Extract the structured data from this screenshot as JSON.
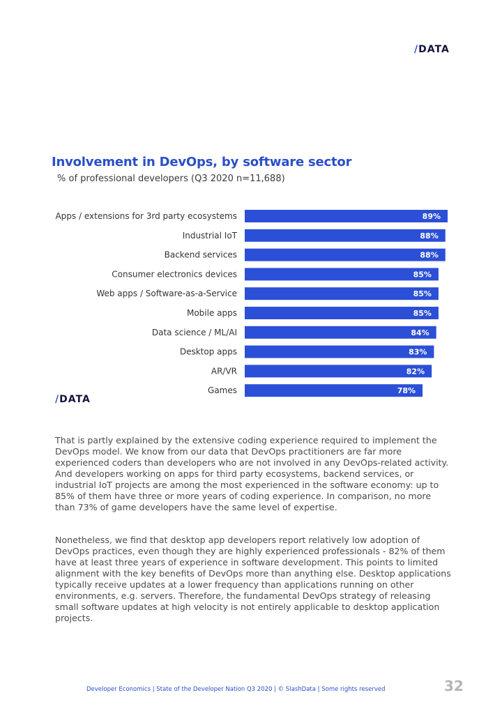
{
  "brand": {
    "logo_text": "/DATA",
    "accent_color": "#2b4fd6"
  },
  "chart_data": {
    "type": "bar",
    "orientation": "horizontal",
    "title": "Involvement in DevOps, by software sector",
    "subtitle": "% of professional developers (Q3 2020 n=11,688)",
    "categories": [
      "Apps / extensions for 3rd party ecosystems",
      "Industrial IoT",
      "Backend services",
      "Consumer electronics devices",
      "Web apps / Software-as-a-Service",
      "Mobile apps",
      "Data science / ML/AI",
      "Desktop apps",
      "AR/VR",
      "Games"
    ],
    "values": [
      89,
      88,
      88,
      85,
      85,
      85,
      84,
      83,
      82,
      78
    ],
    "value_labels": [
      "89%",
      "88%",
      "88%",
      "85%",
      "85%",
      "85%",
      "84%",
      "83%",
      "82%",
      "78%"
    ],
    "unit": "%",
    "xlim": [
      0,
      100
    ],
    "bar_color": "#2b4fd6",
    "grid": false,
    "xlabel": "",
    "ylabel": ""
  },
  "body": {
    "paragraph_1": "That is partly explained by the extensive coding experience required to implement the DevOps model. We know from our data that DevOps practitioners are far more experienced coders than developers who are not involved in any DevOps-related activity. And developers working on apps for third party ecosystems, backend services, or industrial IoT projects are among the most experienced in the software economy: up to 85% of them have three or more years of coding experience. In comparison, no more than 73% of game developers have the same level of expertise.",
    "paragraph_2": "Nonetheless, we find that desktop app developers report relatively low adoption of DevOps practices, even though they are highly experienced professionals - 82% of them have at least three years of experience in software development. This points to limited alignment with the key benefits of DevOps more than anything else. Desktop applications typically receive updates at a lower frequency than applications running on other environments, e.g. servers. Therefore, the fundamental DevOps strategy of releasing small software updates at high velocity is not entirely applicable to desktop application projects."
  },
  "footer": {
    "text": "Developer Economics | State of the Developer Nation Q3 2020 | © SlashData | Some rights reserved",
    "page_number": "32"
  }
}
